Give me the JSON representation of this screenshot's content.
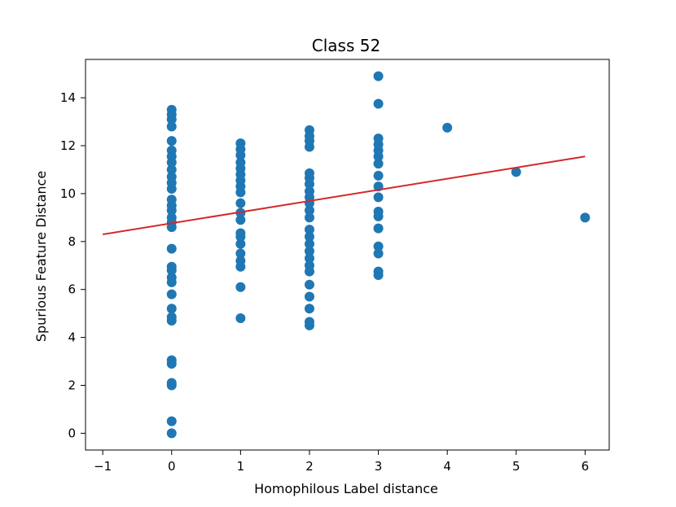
{
  "chart_data": {
    "type": "scatter",
    "title": "Class 52",
    "xlabel": "Homophilous Label distance",
    "ylabel": "Spurious Feature Distance",
    "xlim": [
      -1.25,
      6.35
    ],
    "ylim": [
      -0.7,
      15.6
    ],
    "xticks": [
      -1,
      0,
      1,
      2,
      3,
      4,
      5,
      6
    ],
    "xtick_labels": [
      "−1",
      "0",
      "1",
      "2",
      "3",
      "4",
      "5",
      "6"
    ],
    "yticks": [
      0,
      2,
      4,
      6,
      8,
      10,
      12,
      14
    ],
    "ytick_labels": [
      "0",
      "2",
      "4",
      "6",
      "8",
      "10",
      "12",
      "14"
    ],
    "grid": false,
    "series": [
      {
        "kind": "points",
        "color": "#1f77b4",
        "points": [
          [
            0,
            0.0
          ],
          [
            0,
            0.5
          ],
          [
            0,
            2.0
          ],
          [
            0,
            2.1
          ],
          [
            0,
            2.9
          ],
          [
            0,
            3.05
          ],
          [
            0,
            4.7
          ],
          [
            0,
            4.85
          ],
          [
            0,
            5.2
          ],
          [
            0,
            5.8
          ],
          [
            0,
            6.3
          ],
          [
            0,
            6.5
          ],
          [
            0,
            6.8
          ],
          [
            0,
            6.95
          ],
          [
            0,
            7.7
          ],
          [
            0,
            8.6
          ],
          [
            0,
            8.8
          ],
          [
            0,
            9.0
          ],
          [
            0,
            9.3
          ],
          [
            0,
            9.5
          ],
          [
            0,
            9.75
          ],
          [
            0,
            10.2
          ],
          [
            0,
            10.45
          ],
          [
            0,
            10.7
          ],
          [
            0,
            11.0
          ],
          [
            0,
            11.3
          ],
          [
            0,
            11.55
          ],
          [
            0,
            11.8
          ],
          [
            0,
            12.2
          ],
          [
            0,
            12.8
          ],
          [
            0,
            13.1
          ],
          [
            0,
            13.3
          ],
          [
            0,
            13.5
          ],
          [
            1,
            4.8
          ],
          [
            1,
            6.1
          ],
          [
            1,
            6.95
          ],
          [
            1,
            7.2
          ],
          [
            1,
            7.5
          ],
          [
            1,
            7.9
          ],
          [
            1,
            8.2
          ],
          [
            1,
            8.35
          ],
          [
            1,
            8.9
          ],
          [
            1,
            9.2
          ],
          [
            1,
            9.6
          ],
          [
            1,
            10.05
          ],
          [
            1,
            10.3
          ],
          [
            1,
            10.55
          ],
          [
            1,
            10.8
          ],
          [
            1,
            11.05
          ],
          [
            1,
            11.3
          ],
          [
            1,
            11.6
          ],
          [
            1,
            11.85
          ],
          [
            1,
            12.1
          ],
          [
            2,
            4.5
          ],
          [
            2,
            4.65
          ],
          [
            2,
            5.2
          ],
          [
            2,
            5.7
          ],
          [
            2,
            6.2
          ],
          [
            2,
            6.75
          ],
          [
            2,
            7.0
          ],
          [
            2,
            7.3
          ],
          [
            2,
            7.6
          ],
          [
            2,
            7.9
          ],
          [
            2,
            8.2
          ],
          [
            2,
            8.5
          ],
          [
            2,
            9.0
          ],
          [
            2,
            9.3
          ],
          [
            2,
            9.6
          ],
          [
            2,
            9.85
          ],
          [
            2,
            10.1
          ],
          [
            2,
            10.4
          ],
          [
            2,
            10.65
          ],
          [
            2,
            10.85
          ],
          [
            2,
            11.95
          ],
          [
            2,
            12.2
          ],
          [
            2,
            12.4
          ],
          [
            2,
            12.65
          ],
          [
            3,
            6.6
          ],
          [
            3,
            6.75
          ],
          [
            3,
            7.5
          ],
          [
            3,
            7.8
          ],
          [
            3,
            8.55
          ],
          [
            3,
            9.05
          ],
          [
            3,
            9.25
          ],
          [
            3,
            9.85
          ],
          [
            3,
            10.3
          ],
          [
            3,
            10.75
          ],
          [
            3,
            11.25
          ],
          [
            3,
            11.55
          ],
          [
            3,
            11.8
          ],
          [
            3,
            12.05
          ],
          [
            3,
            12.3
          ],
          [
            3,
            13.75
          ],
          [
            3,
            14.9
          ],
          [
            4,
            12.75
          ],
          [
            5,
            10.9
          ],
          [
            6,
            9.0
          ]
        ]
      },
      {
        "kind": "line",
        "color": "#d62728",
        "x": [
          -1,
          6
        ],
        "y": [
          8.3,
          11.55
        ]
      }
    ]
  }
}
